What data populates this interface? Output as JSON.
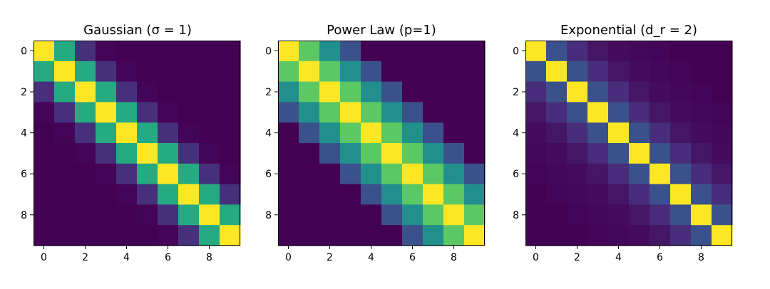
{
  "chart_data": [
    {
      "type": "heatmap",
      "title": "Gaussian (σ = 1)",
      "colormap": "viridis",
      "x_ticks": [
        "0",
        "2",
        "4",
        "6",
        "8"
      ],
      "y_ticks": [
        "0",
        "2",
        "4",
        "6",
        "8"
      ],
      "xlim": [
        -0.5,
        9.5
      ],
      "ylim": [
        9.5,
        -0.5
      ],
      "kernel": {
        "d0": 1.0,
        "d1": 0.61,
        "d2": 0.14,
        "d3": 0.01,
        "d4": 0.0
      },
      "matrix": [
        [
          1.0,
          0.61,
          0.14,
          0.01,
          0.0,
          0.0,
          0.0,
          0.0,
          0.0,
          0.0
        ],
        [
          0.61,
          1.0,
          0.61,
          0.14,
          0.01,
          0.0,
          0.0,
          0.0,
          0.0,
          0.0
        ],
        [
          0.14,
          0.61,
          1.0,
          0.61,
          0.14,
          0.01,
          0.0,
          0.0,
          0.0,
          0.0
        ],
        [
          0.01,
          0.14,
          0.61,
          1.0,
          0.61,
          0.14,
          0.01,
          0.0,
          0.0,
          0.0
        ],
        [
          0.0,
          0.01,
          0.14,
          0.61,
          1.0,
          0.61,
          0.14,
          0.01,
          0.0,
          0.0
        ],
        [
          0.0,
          0.0,
          0.01,
          0.14,
          0.61,
          1.0,
          0.61,
          0.14,
          0.01,
          0.0
        ],
        [
          0.0,
          0.0,
          0.0,
          0.01,
          0.14,
          0.61,
          1.0,
          0.61,
          0.14,
          0.01
        ],
        [
          0.0,
          0.0,
          0.0,
          0.0,
          0.01,
          0.14,
          0.61,
          1.0,
          0.61,
          0.14
        ],
        [
          0.0,
          0.0,
          0.0,
          0.0,
          0.0,
          0.01,
          0.14,
          0.61,
          1.0,
          0.61
        ],
        [
          0.0,
          0.0,
          0.0,
          0.0,
          0.0,
          0.0,
          0.01,
          0.14,
          0.61,
          1.0
        ]
      ]
    },
    {
      "type": "heatmap",
      "title": "Power Law (p=1)",
      "colormap": "viridis",
      "x_ticks": [
        "0",
        "2",
        "4",
        "6",
        "8"
      ],
      "y_ticks": [
        "0",
        "2",
        "4",
        "6",
        "8"
      ],
      "xlim": [
        -0.5,
        9.5
      ],
      "ylim": [
        9.5,
        -0.5
      ],
      "kernel": {
        "d0": 1.0,
        "d1": 0.75,
        "d2": 0.5,
        "d3": 0.25,
        "d4": 0.0
      },
      "matrix": [
        [
          1.0,
          0.75,
          0.5,
          0.25,
          0.0,
          0.0,
          0.0,
          0.0,
          0.0,
          0.0
        ],
        [
          0.75,
          1.0,
          0.75,
          0.5,
          0.25,
          0.0,
          0.0,
          0.0,
          0.0,
          0.0
        ],
        [
          0.5,
          0.75,
          1.0,
          0.75,
          0.5,
          0.25,
          0.0,
          0.0,
          0.0,
          0.0
        ],
        [
          0.25,
          0.5,
          0.75,
          1.0,
          0.75,
          0.5,
          0.25,
          0.0,
          0.0,
          0.0
        ],
        [
          0.0,
          0.25,
          0.5,
          0.75,
          1.0,
          0.75,
          0.5,
          0.25,
          0.0,
          0.0
        ],
        [
          0.0,
          0.0,
          0.25,
          0.5,
          0.75,
          1.0,
          0.75,
          0.5,
          0.25,
          0.0
        ],
        [
          0.0,
          0.0,
          0.0,
          0.25,
          0.5,
          0.75,
          1.0,
          0.75,
          0.5,
          0.25
        ],
        [
          0.0,
          0.0,
          0.0,
          0.0,
          0.25,
          0.5,
          0.75,
          1.0,
          0.75,
          0.5
        ],
        [
          0.0,
          0.0,
          0.0,
          0.0,
          0.0,
          0.25,
          0.5,
          0.75,
          1.0,
          0.75
        ],
        [
          0.0,
          0.0,
          0.0,
          0.0,
          0.0,
          0.0,
          0.25,
          0.5,
          0.75,
          1.0
        ]
      ]
    },
    {
      "type": "heatmap",
      "title": "Exponential (d_r = 2)",
      "colormap": "viridis",
      "x_ticks": [
        "0",
        "2",
        "4",
        "6",
        "8"
      ],
      "y_ticks": [
        "0",
        "2",
        "4",
        "6",
        "8"
      ],
      "xlim": [
        -0.5,
        9.5
      ],
      "ylim": [
        9.5,
        -0.5
      ],
      "kernel": {
        "d0": 1.0,
        "d1": 0.25,
        "d2": 0.13,
        "d3": 0.06,
        "d4": 0.03
      },
      "matrix": [
        [
          1.0,
          0.25,
          0.13,
          0.06,
          0.03,
          0.02,
          0.01,
          0.0,
          0.0,
          0.0
        ],
        [
          0.25,
          1.0,
          0.25,
          0.13,
          0.06,
          0.03,
          0.02,
          0.01,
          0.0,
          0.0
        ],
        [
          0.13,
          0.25,
          1.0,
          0.25,
          0.13,
          0.06,
          0.03,
          0.02,
          0.01,
          0.0
        ],
        [
          0.06,
          0.13,
          0.25,
          1.0,
          0.25,
          0.13,
          0.06,
          0.03,
          0.02,
          0.01
        ],
        [
          0.03,
          0.06,
          0.13,
          0.25,
          1.0,
          0.25,
          0.13,
          0.06,
          0.03,
          0.02
        ],
        [
          0.02,
          0.03,
          0.06,
          0.13,
          0.25,
          1.0,
          0.25,
          0.13,
          0.06,
          0.03
        ],
        [
          0.01,
          0.02,
          0.03,
          0.06,
          0.13,
          0.25,
          1.0,
          0.25,
          0.13,
          0.06
        ],
        [
          0.0,
          0.01,
          0.02,
          0.03,
          0.06,
          0.13,
          0.25,
          1.0,
          0.25,
          0.13
        ],
        [
          0.0,
          0.0,
          0.01,
          0.02,
          0.03,
          0.06,
          0.13,
          0.25,
          1.0,
          0.25
        ],
        [
          0.0,
          0.0,
          0.0,
          0.01,
          0.02,
          0.03,
          0.06,
          0.13,
          0.25,
          1.0
        ]
      ]
    }
  ]
}
